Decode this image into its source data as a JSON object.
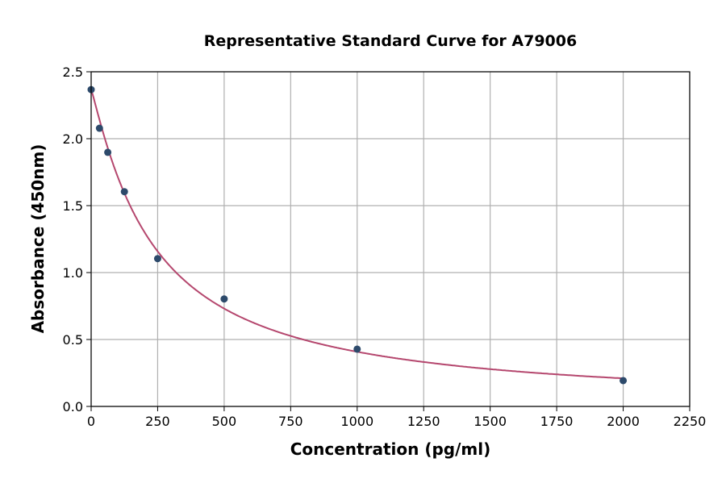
{
  "chart_data": {
    "type": "scatter",
    "title": "Representative Standard Curve for A79006",
    "xlabel": "Concentration (pg/ml)",
    "ylabel": "Absorbance (450nm)",
    "xlim": [
      0,
      2250
    ],
    "ylim": [
      0,
      2.5
    ],
    "xticks": [
      0,
      250,
      500,
      750,
      1000,
      1250,
      1500,
      1750,
      2000,
      2250
    ],
    "yticks": [
      0.0,
      0.5,
      1.0,
      1.5,
      2.0,
      2.5
    ],
    "xtick_labels": [
      "0",
      "250",
      "500",
      "750",
      "1000",
      "1250",
      "1500",
      "1750",
      "2000",
      "2250"
    ],
    "ytick_labels": [
      "0.0",
      "0.5",
      "1.0",
      "1.5",
      "2.0",
      "2.5"
    ],
    "grid": true,
    "points": {
      "x": [
        0,
        31.25,
        62.5,
        125,
        250,
        500,
        1000,
        2000
      ],
      "y": [
        2.367,
        2.078,
        1.898,
        1.604,
        1.104,
        0.803,
        0.428,
        0.193
      ]
    },
    "fit_curve": true,
    "colors": {
      "points": "#2d4a6b",
      "curve": "#b5476e",
      "grid": "#b0b0b0"
    }
  }
}
